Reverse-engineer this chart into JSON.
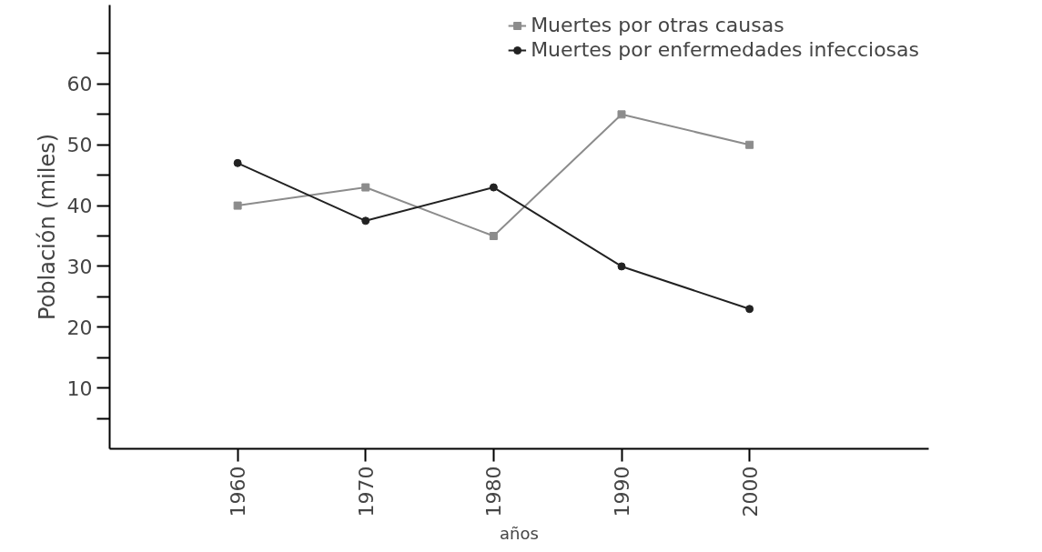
{
  "chart_data": {
    "type": "line",
    "xlabel": "años",
    "ylabel": "Población (miles)",
    "x": [
      1960,
      1970,
      1980,
      1990,
      2000
    ],
    "series": [
      {
        "name": "Muertes por otras causas",
        "color": "#8c8c8c",
        "marker": "square",
        "values": [
          40,
          43,
          35,
          55,
          50
        ]
      },
      {
        "name": "Muertes por enfermedades infecciosas",
        "color": "#222222",
        "marker": "circle",
        "values": [
          47,
          37.5,
          43,
          30,
          23
        ]
      }
    ],
    "xlim": [
      1950,
      2014
    ],
    "ylim": [
      0,
      73
    ],
    "xticks": [
      1960,
      1970,
      1980,
      1990,
      2000
    ],
    "yticks": [
      {
        "value": 5,
        "label": null
      },
      10,
      {
        "value": 15,
        "label": null
      },
      20,
      {
        "value": 25,
        "label": null
      },
      30,
      {
        "value": 35,
        "label": null
      },
      40,
      {
        "value": 45,
        "label": null
      },
      50,
      {
        "value": 55,
        "label": null
      },
      60,
      {
        "value": 65,
        "label": null
      }
    ],
    "grid": false,
    "legend": "top right",
    "line_style": "solid"
  }
}
